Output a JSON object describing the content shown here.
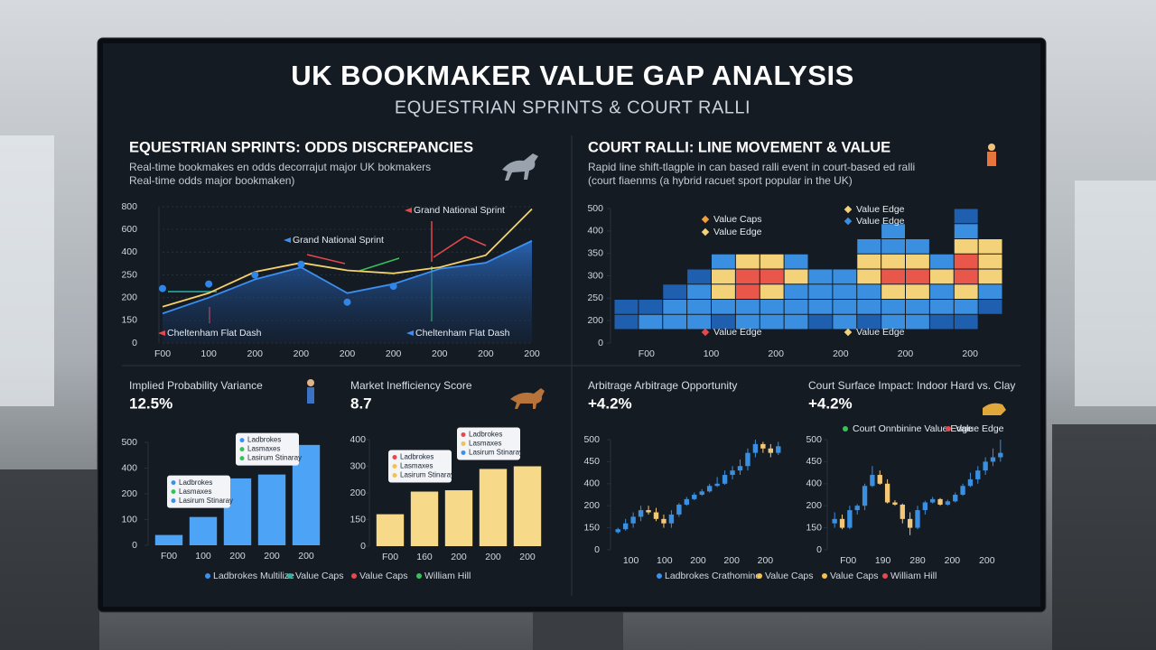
{
  "header": {
    "title": "UK BOOKMAKER VALUE GAP ANALYSIS",
    "subtitle": "EQUESTRIAN SPRINTS & COURT RALLI"
  },
  "sections": [
    {
      "title": "EQUESTRIAN SPRINTS: ODDS DISCREPANCIES",
      "lines": [
        "Real-time bookmakes en odds decorrajut major UK bokmakers",
        "Real-time odds major bookmaken)"
      ],
      "legend": [
        {
          "name": "Ladbrokes Multilize",
          "color": "#3b8ff0"
        },
        {
          "name": "Value Caps",
          "color": "#2bb3a3"
        },
        {
          "name": "Value Caps",
          "color": "#e5484d"
        },
        {
          "name": "William Hill",
          "color": "#35c25a"
        }
      ]
    },
    {
      "title": "COURT RALLI: LINE MOVEMENT & VALUE",
      "lines": [
        "Rapid line shift-tlagple in can based ralli event in court-based ed ralli",
        "(court fiaenms (a hybrid racuet sport popular in the UK)"
      ],
      "legend": [
        {
          "name": "Ladbrokes Crathomine",
          "color": "#3b8ff0"
        },
        {
          "name": "Value Caps",
          "color": "#f2c14e"
        },
        {
          "name": "Value Caps",
          "color": "#f2c14e"
        },
        {
          "name": "William Hill",
          "color": "#e5484d"
        }
      ]
    }
  ],
  "chart_data": [
    {
      "type": "line",
      "categories": [
        "F00",
        "100",
        "200",
        "200",
        "200",
        "200",
        "200",
        "200",
        "200"
      ],
      "series": [
        {
          "color": "#3b8ff0",
          "fill": true,
          "markers": false,
          "values": [
            165,
            200,
            240,
            300,
            210,
            230,
            290,
            330,
            500
          ]
        },
        {
          "color": "#f2d16b",
          "fill": false,
          "markers": false,
          "values": [
            180,
            210,
            270,
            330,
            280,
            260,
            300,
            380,
            780
          ]
        },
        {
          "color": "#2f86e8",
          "fill": false,
          "markers": true,
          "values": [
            220,
            230,
            250,
            320,
            190,
            225,
            null,
            null,
            null
          ]
        }
      ],
      "annotations": [
        "Grand National Sprint",
        "Grand National Sprint",
        "Cheltenham Flat Dash",
        "Cheltenham Flat Dash"
      ],
      "ylim": [
        0,
        800
      ],
      "yticks": [
        0,
        150,
        200,
        250,
        400,
        600,
        800
      ],
      "grid": true
    },
    {
      "type": "heatmap",
      "categories": [
        "F00",
        "100",
        "200",
        "200",
        "200",
        "200"
      ],
      "colors": [
        "#1f5fb0",
        "#3a8fe0",
        "#f4d27a",
        "#e8574a"
      ],
      "z": [
        [
          null,
          null,
          null,
          null,
          null,
          null,
          null,
          null,
          null,
          null,
          null,
          null,
          null,
          null,
          1,
          null
        ],
        [
          null,
          null,
          null,
          null,
          null,
          null,
          null,
          null,
          null,
          null,
          null,
          2,
          null,
          null,
          2,
          null
        ],
        [
          null,
          null,
          null,
          null,
          null,
          null,
          null,
          null,
          null,
          null,
          2,
          2,
          2,
          null,
          3,
          3
        ],
        [
          null,
          null,
          null,
          null,
          2,
          3,
          3,
          2,
          null,
          null,
          3,
          3,
          3,
          2,
          4,
          3
        ],
        [
          null,
          null,
          null,
          1,
          3,
          4,
          4,
          3,
          2,
          2,
          3,
          4,
          4,
          3,
          4,
          3
        ],
        [
          null,
          null,
          1,
          2,
          3,
          4,
          3,
          2,
          2,
          2,
          2,
          3,
          3,
          2,
          3,
          2
        ],
        [
          1,
          1,
          2,
          2,
          2,
          2,
          2,
          2,
          2,
          2,
          2,
          2,
          2,
          2,
          2,
          1
        ],
        [
          1,
          2,
          2,
          2,
          1,
          2,
          2,
          2,
          1,
          2,
          1,
          2,
          2,
          1,
          1,
          null
        ]
      ],
      "legend": [
        {
          "name": "Value Caps",
          "color": "#f2a03a"
        },
        {
          "name": "Value Edge",
          "color": "#f4d27a"
        },
        {
          "name": "Value Edge",
          "color": "#3a8fe0"
        },
        {
          "name": "Value Edge",
          "color": "#f4d27a"
        },
        {
          "name": "Value Edge",
          "color": "#e5484d"
        },
        {
          "name": "Value Edge",
          "color": "#f4d27a"
        }
      ],
      "ylim": [
        0,
        500
      ],
      "yticks": [
        0,
        200,
        250,
        300,
        350,
        400,
        500
      ],
      "grid": false
    },
    {
      "type": "bar",
      "title": "Implied Probability Variance",
      "kpi": "12.5%",
      "categories": [
        "F00",
        "100",
        "200",
        "200",
        "200"
      ],
      "values": [
        40,
        110,
        320,
        350,
        490
      ],
      "color": "#4da3f5",
      "callouts": [
        {
          "lines": [
            "Ladbrokes",
            "Lasmaxes",
            "Lasirum Stinaray"
          ],
          "colors": [
            "#3b8ff0",
            "#35c25a",
            "#3b8ff0"
          ]
        },
        {
          "lines": [
            "Ladbrokes",
            "Lasmaxes",
            "Lasirum Stinaray"
          ],
          "colors": [
            "#3b8ff0",
            "#35c25a",
            "#35c25a"
          ]
        }
      ],
      "ylim": [
        0,
        500
      ],
      "yticks": [
        0,
        100,
        200,
        400,
        500
      ],
      "grid": false
    },
    {
      "type": "bar",
      "title": "Market Inefficiency Score",
      "kpi": "8.7",
      "categories": [
        "F00",
        "160",
        "200",
        "200",
        "200"
      ],
      "values": [
        160,
        205,
        210,
        290,
        300
      ],
      "color": "#f7d98a",
      "callouts": [
        {
          "lines": [
            "Ladbrokes",
            "Lasmaxes",
            "Lasirum Stinaray"
          ],
          "colors": [
            "#e5484d",
            "#f2c14e",
            "#f2c14e"
          ]
        },
        {
          "lines": [
            "Ladbrokes",
            "Lasmaxes",
            "Lasirum Stinaray"
          ],
          "colors": [
            "#e5484d",
            "#f2c14e",
            "#3b8ff0"
          ]
        }
      ],
      "ylim": [
        0,
        400
      ],
      "yticks": [
        0,
        150,
        200,
        300,
        400
      ],
      "grid": false
    },
    {
      "type": "candlestick",
      "title": "Arbitrage Arbitrage Opportunity",
      "kpi": "+4.2%",
      "categories": [
        "100",
        "100",
        "200",
        "200",
        "200"
      ],
      "up_color": "#3a8fe0",
      "down_color": "#f2c878",
      "open": [
        120,
        140,
        160,
        175,
        190,
        185,
        170,
        160,
        180,
        210,
        260,
        300,
        330,
        380,
        400,
        420,
        430,
        440,
        470,
        490,
        480,
        470
      ],
      "close": [
        140,
        160,
        175,
        190,
        185,
        170,
        160,
        180,
        210,
        260,
        300,
        330,
        380,
        400,
        420,
        430,
        440,
        470,
        490,
        480,
        470,
        485
      ],
      "high": [
        150,
        170,
        185,
        200,
        200,
        195,
        180,
        190,
        225,
        280,
        320,
        350,
        400,
        415,
        430,
        440,
        455,
        480,
        500,
        495,
        490,
        495
      ],
      "low": [
        110,
        130,
        150,
        165,
        180,
        165,
        150,
        150,
        175,
        200,
        250,
        290,
        320,
        370,
        390,
        410,
        420,
        430,
        460,
        470,
        460,
        465
      ],
      "ylim": [
        0,
        500
      ],
      "yticks": [
        0,
        150,
        200,
        400,
        450,
        500
      ],
      "grid": false
    },
    {
      "type": "candlestick",
      "title": "Court Surface Impact: Indoor Hard vs. Clay",
      "kpi": "+4.2%",
      "categories": [
        "F00",
        "190",
        "280",
        "200",
        "200"
      ],
      "up_color": "#3a8fe0",
      "down_color": "#f2c878",
      "open": [
        160,
        170,
        150,
        190,
        200,
        380,
        420,
        400,
        230,
        210,
        170,
        150,
        190,
        230,
        260,
        210,
        240,
        300,
        380,
        410,
        430,
        450,
        460
      ],
      "close": [
        170,
        150,
        190,
        200,
        380,
        420,
        400,
        230,
        210,
        170,
        150,
        190,
        230,
        260,
        210,
        240,
        300,
        380,
        410,
        430,
        450,
        460,
        470
      ],
      "high": [
        185,
        180,
        200,
        215,
        400,
        440,
        430,
        410,
        250,
        220,
        185,
        200,
        245,
        280,
        270,
        255,
        320,
        400,
        425,
        440,
        460,
        480,
        500
      ],
      "low": [
        150,
        140,
        140,
        180,
        190,
        370,
        390,
        220,
        200,
        160,
        100,
        140,
        180,
        220,
        200,
        200,
        230,
        290,
        370,
        400,
        420,
        440,
        450
      ],
      "legend": [
        {
          "name": "Court Onnbinine Value Edge",
          "color": "#35c25a"
        },
        {
          "name": "Value Edge",
          "color": "#e5484d"
        }
      ],
      "ylim": [
        0,
        500
      ],
      "yticks": [
        0,
        150,
        200,
        400,
        450,
        500
      ],
      "grid": false
    }
  ]
}
